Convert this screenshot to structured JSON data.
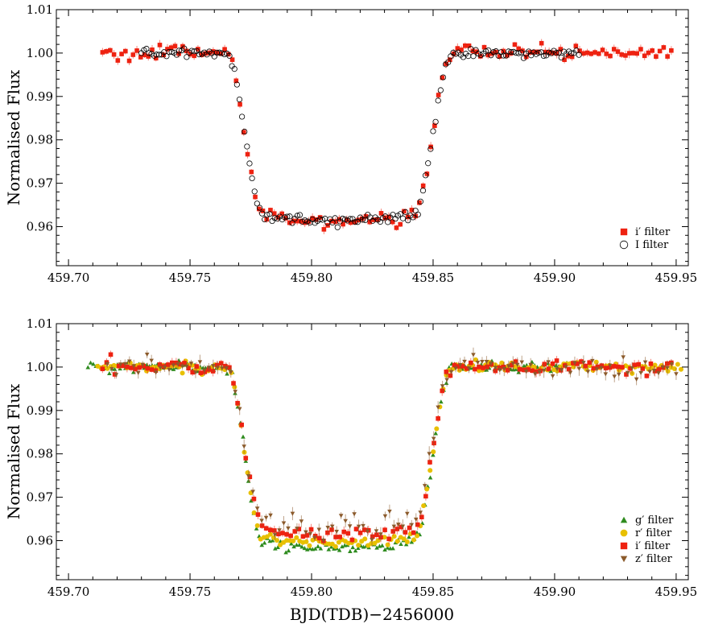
{
  "figure": {
    "xlabel": "BJD(TDB)−2456000"
  },
  "chart_data": [
    {
      "type": "scatter",
      "ylabel": "Normalised Flux",
      "xlim": [
        459.695,
        459.955
      ],
      "ylim": [
        0.951,
        1.01
      ],
      "x_ticks": [
        "459.70",
        "459.75",
        "459.80",
        "459.85",
        "459.90",
        "459.95"
      ],
      "y_ticks": [
        "0.96",
        "0.97",
        "0.98",
        "0.99",
        "1.00",
        "1.01"
      ],
      "legend_position": "bottom-right",
      "transit_model": {
        "t1": 459.765,
        "t2": 459.78,
        "t3": 459.842,
        "t4": 459.858,
        "t_mid": 459.811,
        "depth": 0.0385
      },
      "series": [
        {
          "name": "i′ filter",
          "marker": "square",
          "color": "#ee2211",
          "errorbars": true,
          "x_range": [
            459.714,
            459.948
          ],
          "points": 150,
          "depth": 0.0385,
          "scatter": 0.0008
        },
        {
          "name": "I filter",
          "marker": "circle-open",
          "color": "#000000",
          "errorbars": false,
          "x_range": [
            459.73,
            459.91
          ],
          "points": 175,
          "depth": 0.0385,
          "scatter": 0.0005
        }
      ]
    },
    {
      "type": "scatter",
      "ylabel": "Normalised Flux",
      "xlim": [
        459.695,
        459.955
      ],
      "ylim": [
        0.951,
        1.01
      ],
      "x_ticks": [
        "459.70",
        "459.75",
        "459.80",
        "459.85",
        "459.90",
        "459.95"
      ],
      "y_ticks": [
        "0.96",
        "0.97",
        "0.98",
        "0.99",
        "1.00",
        "1.01"
      ],
      "legend_position": "bottom-right",
      "transit_model": {
        "t1": 459.765,
        "t2": 459.78,
        "t3": 459.842,
        "t4": 459.858,
        "t_mid": 459.811,
        "depth": 0.0385
      },
      "series": [
        {
          "name": "g′ filter",
          "marker": "triangle-up",
          "color": "#2e8b1e",
          "errorbars": false,
          "x_range": [
            459.708,
            459.905
          ],
          "points": 180,
          "depth": 0.0415,
          "scatter": 0.0006
        },
        {
          "name": "r′ filter",
          "marker": "circle",
          "color": "#e8c000",
          "errorbars": false,
          "x_range": [
            459.712,
            459.952
          ],
          "points": 180,
          "depth": 0.0405,
          "scatter": 0.0006
        },
        {
          "name": "i′ filter",
          "marker": "square",
          "color": "#ee2211",
          "errorbars": true,
          "x_range": [
            459.714,
            459.948
          ],
          "points": 140,
          "depth": 0.0385,
          "scatter": 0.0009
        },
        {
          "name": "z′ filter",
          "marker": "triangle-down",
          "color": "#8b5a2b",
          "errorbars": true,
          "x_range": [
            459.716,
            459.95
          ],
          "points": 130,
          "depth": 0.037,
          "scatter": 0.0012
        }
      ]
    }
  ]
}
